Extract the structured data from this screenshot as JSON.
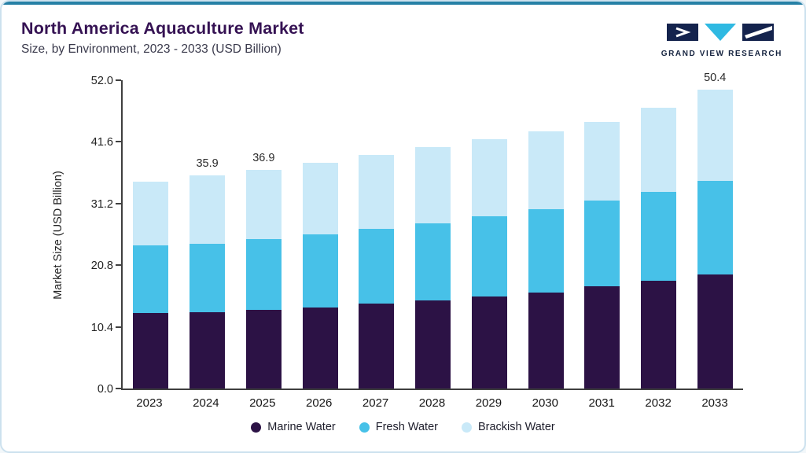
{
  "header": {
    "logo_text": "GRAND VIEW RESEARCH"
  },
  "colors": {
    "accent_top": "#2680A6",
    "card_border": "#CCE1EE",
    "title_text": "#351253",
    "logo_navy": "#14234D",
    "logo_cyan": "#2FB9E2",
    "marine_water": "#2C1245",
    "fresh_water": "#47C1E8",
    "brackish_water": "#C9E9F8"
  },
  "chart_data": {
    "type": "bar",
    "stacked": true,
    "title": "North America Aquaculture Market",
    "subtitle": "Size, by Environment, 2023 - 2033 (USD Billion)",
    "ylabel": "Market Size (USD Billion)",
    "xlabel": "",
    "categories": [
      "2023",
      "2024",
      "2025",
      "2026",
      "2027",
      "2028",
      "2029",
      "2030",
      "2031",
      "2032",
      "2033"
    ],
    "series": [
      {
        "name": "Marine Water",
        "color": "#2C1245",
        "values": [
          12.8,
          12.9,
          13.3,
          13.7,
          14.3,
          14.8,
          15.5,
          16.2,
          17.2,
          18.2,
          19.3
        ]
      },
      {
        "name": "Fresh Water",
        "color": "#47C1E8",
        "values": [
          11.4,
          11.5,
          11.9,
          12.3,
          12.6,
          13.1,
          13.5,
          14.1,
          14.5,
          15.0,
          15.7
        ]
      },
      {
        "name": "Brackish Water",
        "color": "#C9E9F8",
        "values": [
          10.7,
          11.5,
          11.7,
          12.1,
          12.5,
          12.8,
          13.0,
          13.1,
          13.3,
          14.1,
          15.4
        ]
      }
    ],
    "totals": [
      34.9,
      35.9,
      36.9,
      38.1,
      39.4,
      40.7,
      42.0,
      43.4,
      45.0,
      47.3,
      50.4
    ],
    "bar_total_labels": [
      "",
      "35.9",
      "36.9",
      "",
      "",
      "",
      "",
      "",
      "",
      "",
      "50.4"
    ],
    "y_ticks": [
      "0.0",
      "10.4",
      "20.8",
      "31.2",
      "41.6",
      "52.0"
    ],
    "ylim": [
      0,
      52.0
    ],
    "grid": false,
    "legend_position": "bottom"
  }
}
